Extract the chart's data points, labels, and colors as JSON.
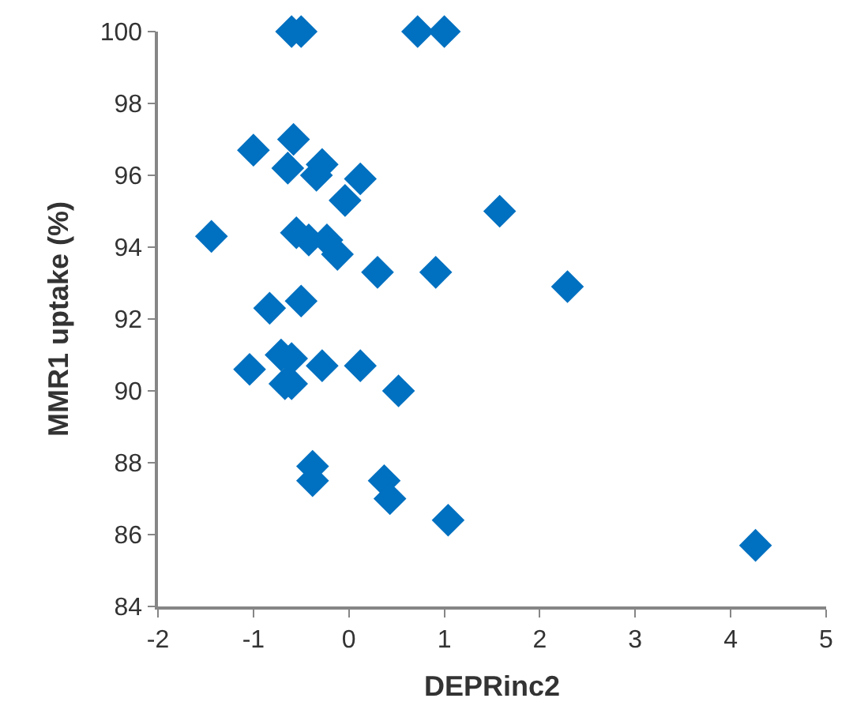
{
  "chart_data": {
    "type": "scatter",
    "xlabel": "DEPRinc2",
    "ylabel": "MMR1 uptake (%)",
    "x": [
      -0.6,
      -0.5,
      0.72,
      1.0,
      -1.0,
      -0.58,
      -0.64,
      -0.28,
      -0.34,
      0.12,
      -0.04,
      1.58,
      -1.44,
      -0.55,
      -0.42,
      -0.23,
      -0.12,
      0.3,
      0.91,
      2.29,
      -0.83,
      -0.5,
      -1.04,
      -0.71,
      -0.6,
      -0.67,
      -0.6,
      -0.28,
      0.12,
      0.52,
      -0.38,
      -0.38,
      0.37,
      0.43,
      1.04,
      4.26
    ],
    "values": [
      100,
      100,
      100,
      100,
      96.7,
      97.0,
      96.2,
      96.3,
      96.0,
      95.9,
      95.3,
      95.0,
      94.3,
      94.4,
      94.2,
      94.2,
      93.8,
      93.3,
      93.3,
      92.9,
      92.3,
      92.5,
      90.6,
      91.0,
      90.9,
      90.2,
      90.2,
      90.7,
      90.7,
      90.0,
      87.9,
      87.5,
      87.5,
      87.0,
      86.4,
      85.7
    ],
    "color": "#0070c0",
    "marker": "diamond",
    "xlim": [
      -2,
      5
    ],
    "xticks": [
      -2,
      -1,
      0,
      1,
      2,
      3,
      4,
      5
    ],
    "ylim": [
      84,
      100
    ],
    "yticks": [
      84,
      86,
      88,
      90,
      92,
      94,
      96,
      98,
      100
    ]
  }
}
